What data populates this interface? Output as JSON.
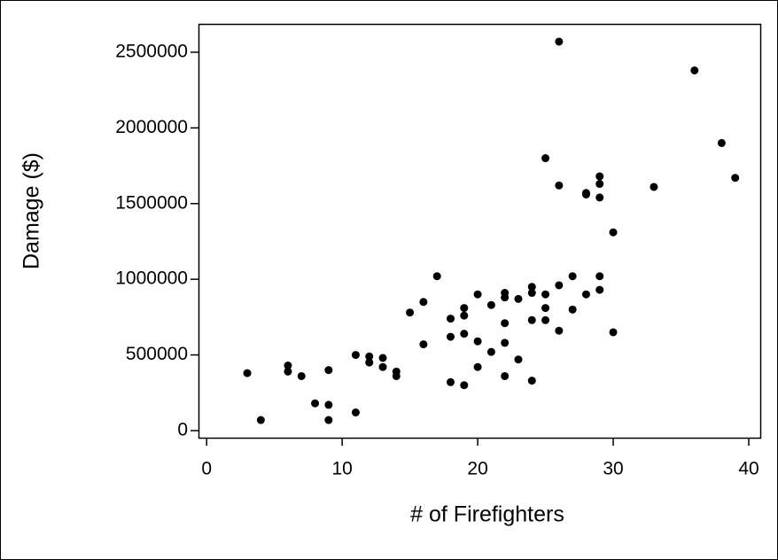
{
  "chart_data": {
    "type": "scatter",
    "x_label": "# of Firefighters",
    "y_label": "Damage ($)",
    "color": "#000000",
    "xlim": [
      -0.6,
      40.85
    ],
    "ylim": [
      -47000,
      2687000
    ],
    "xticks": [
      0,
      10,
      20,
      30,
      40
    ],
    "yticks": [
      0,
      500000,
      1000000,
      1500000,
      2000000,
      2500000
    ],
    "x": [
      3,
      4,
      6,
      6,
      7,
      8,
      9,
      9,
      9,
      11,
      11,
      12,
      12,
      13,
      13,
      14,
      14,
      15,
      16,
      16,
      17,
      18,
      18,
      18,
      19,
      19,
      19,
      19,
      20,
      20,
      20,
      21,
      21,
      22,
      22,
      22,
      22,
      22,
      23,
      23,
      24,
      24,
      24,
      24,
      25,
      25,
      25,
      25,
      26,
      26,
      26,
      26,
      27,
      27,
      28,
      28,
      28,
      29,
      29,
      29,
      29,
      29,
      30,
      30,
      33,
      36,
      38,
      39
    ],
    "values": [
      380000,
      70000,
      430000,
      390000,
      360000,
      180000,
      400000,
      170000,
      70000,
      500000,
      120000,
      490000,
      450000,
      480000,
      420000,
      390000,
      360000,
      780000,
      850000,
      570000,
      1020000,
      740000,
      620000,
      320000,
      810000,
      760000,
      640000,
      300000,
      900000,
      590000,
      420000,
      830000,
      520000,
      910000,
      880000,
      710000,
      580000,
      360000,
      870000,
      470000,
      950000,
      910000,
      730000,
      330000,
      1800000,
      900000,
      810000,
      730000,
      2570000,
      1620000,
      960000,
      660000,
      1020000,
      800000,
      1570000,
      1560000,
      900000,
      1680000,
      1630000,
      1540000,
      1020000,
      930000,
      1310000,
      650000,
      1610000,
      2380000,
      1900000,
      1670000
    ]
  }
}
